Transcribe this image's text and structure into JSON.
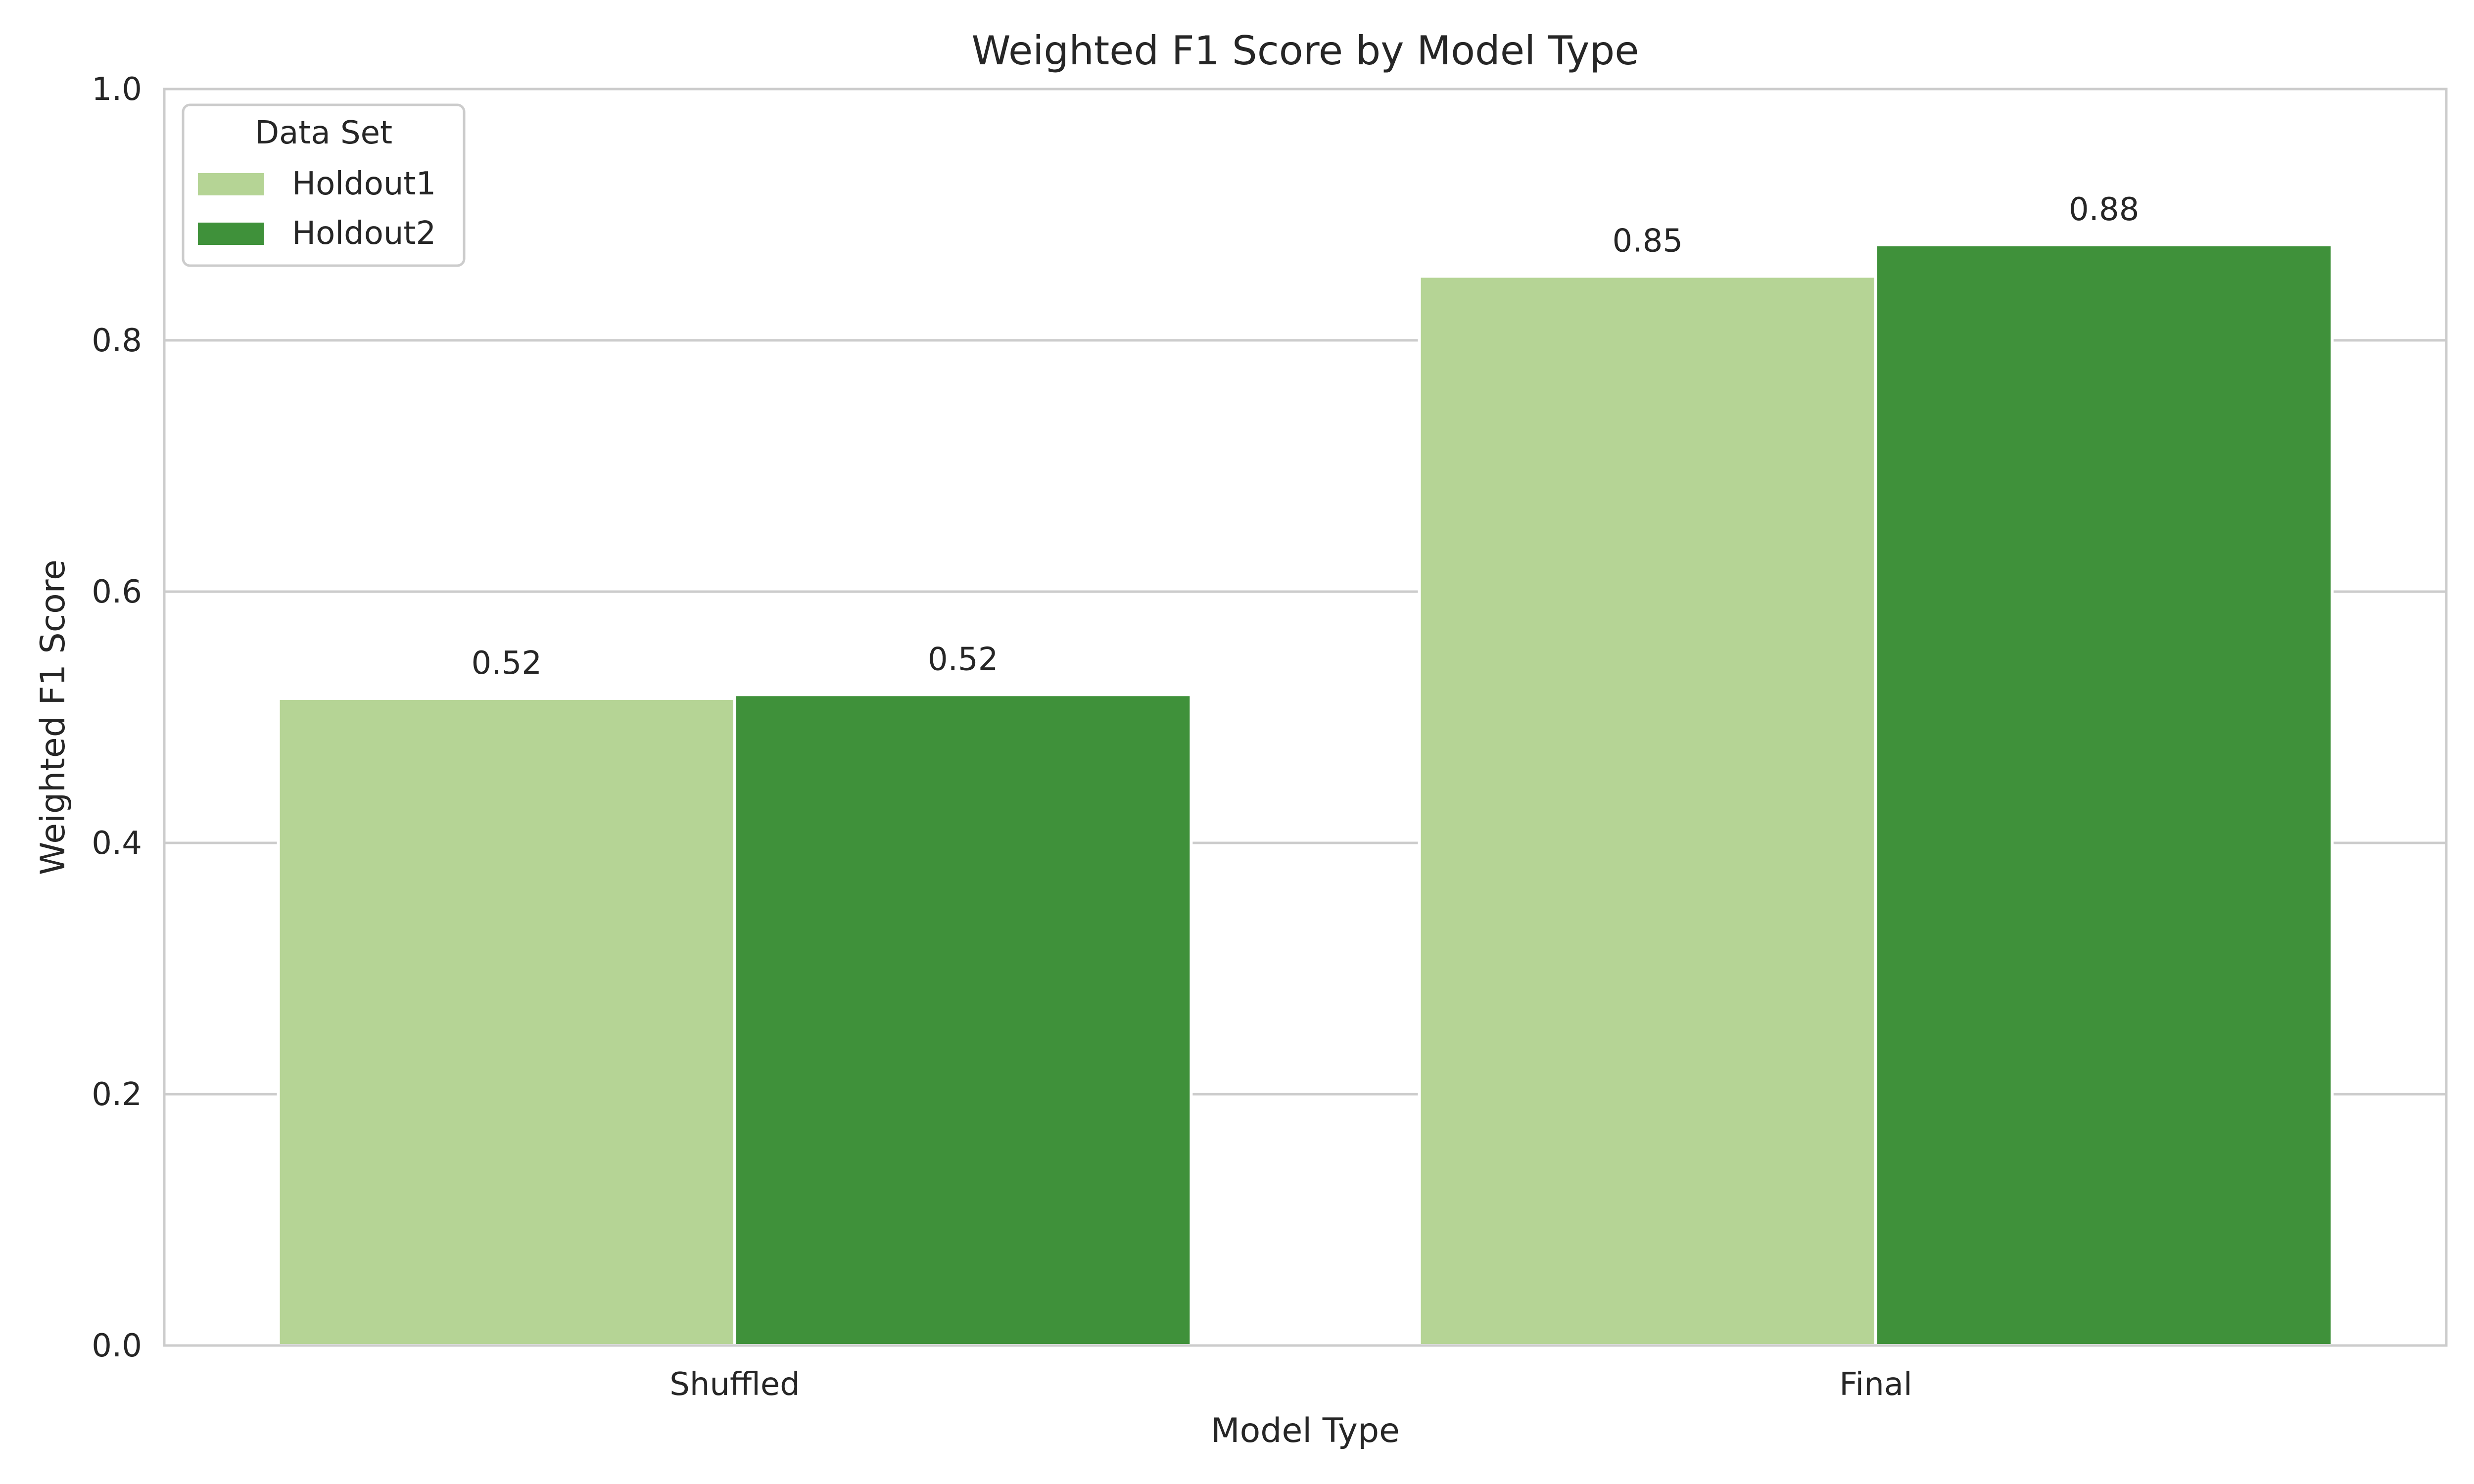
{
  "chart_data": {
    "type": "bar",
    "title": "Weighted F1 Score by Model Type",
    "xlabel": "Model Type",
    "ylabel": "Weighted F1 Score",
    "categories": [
      "Shuffled",
      "Final"
    ],
    "series": [
      {
        "name": "Holdout1",
        "values": [
          0.515,
          0.851
        ],
        "labels": [
          "0.52",
          "0.85"
        ],
        "color": "#b5d495"
      },
      {
        "name": "Holdout2",
        "values": [
          0.518,
          0.876
        ],
        "labels": [
          "0.52",
          "0.88"
        ],
        "color": "#3f913a"
      }
    ],
    "ylim": [
      0,
      1.0
    ],
    "yticks": [
      0.0,
      0.2,
      0.4,
      0.6,
      0.8,
      1.0
    ],
    "ytick_labels": [
      "0.0",
      "0.2",
      "0.4",
      "0.6",
      "0.8",
      "1.0"
    ],
    "grid": "horizontal",
    "legend": {
      "title": "Data Set",
      "position": "top-left"
    }
  }
}
